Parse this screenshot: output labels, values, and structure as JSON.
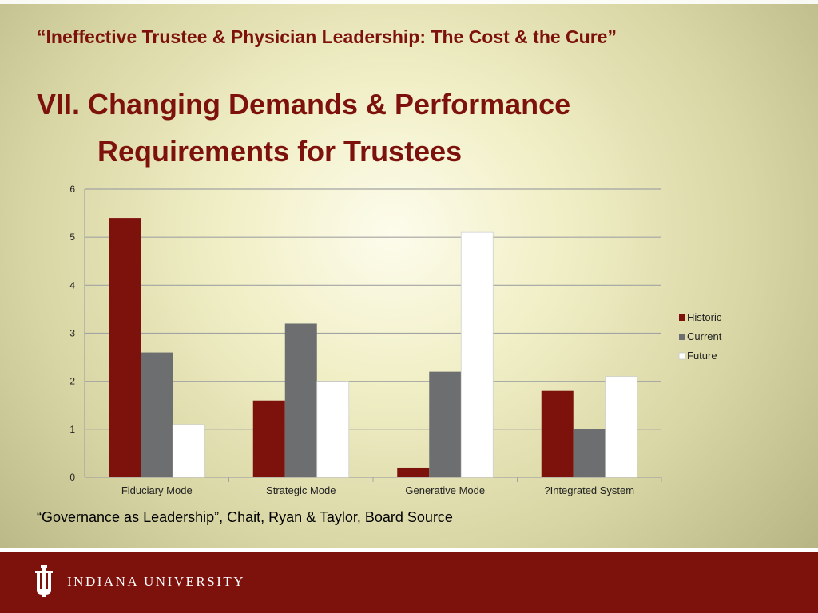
{
  "slide": {
    "subtitle": "“Ineffective Trustee & Physician Leadership: The Cost & the Cure”",
    "title_line1": "VII. Changing Demands & Performance",
    "title_line2": "Requirements for Trustees",
    "source": "“Governance as Leadership”, Chait, Ryan & Taylor, Board Source",
    "footer_text": "INDIANA UNIVERSITY",
    "brand_color": "#7d110c"
  },
  "chart_data": {
    "type": "bar",
    "categories": [
      "Fiduciary Mode",
      "Strategic Mode",
      "Generative Mode",
      "?Integrated System"
    ],
    "series": [
      {
        "name": "Historic",
        "values": [
          5.4,
          1.6,
          0.2,
          1.8
        ],
        "color": "#7d110c"
      },
      {
        "name": "Current",
        "values": [
          2.6,
          3.2,
          2.2,
          1.0
        ],
        "color": "#6d6e70"
      },
      {
        "name": "Future",
        "values": [
          1.1,
          2.0,
          5.1,
          2.1
        ],
        "color": "#ffffff"
      }
    ],
    "ylim": [
      0,
      6
    ],
    "yticks": [
      "0",
      "1",
      "2",
      "3",
      "4",
      "5",
      "6"
    ],
    "grid": true,
    "legend": "right"
  }
}
